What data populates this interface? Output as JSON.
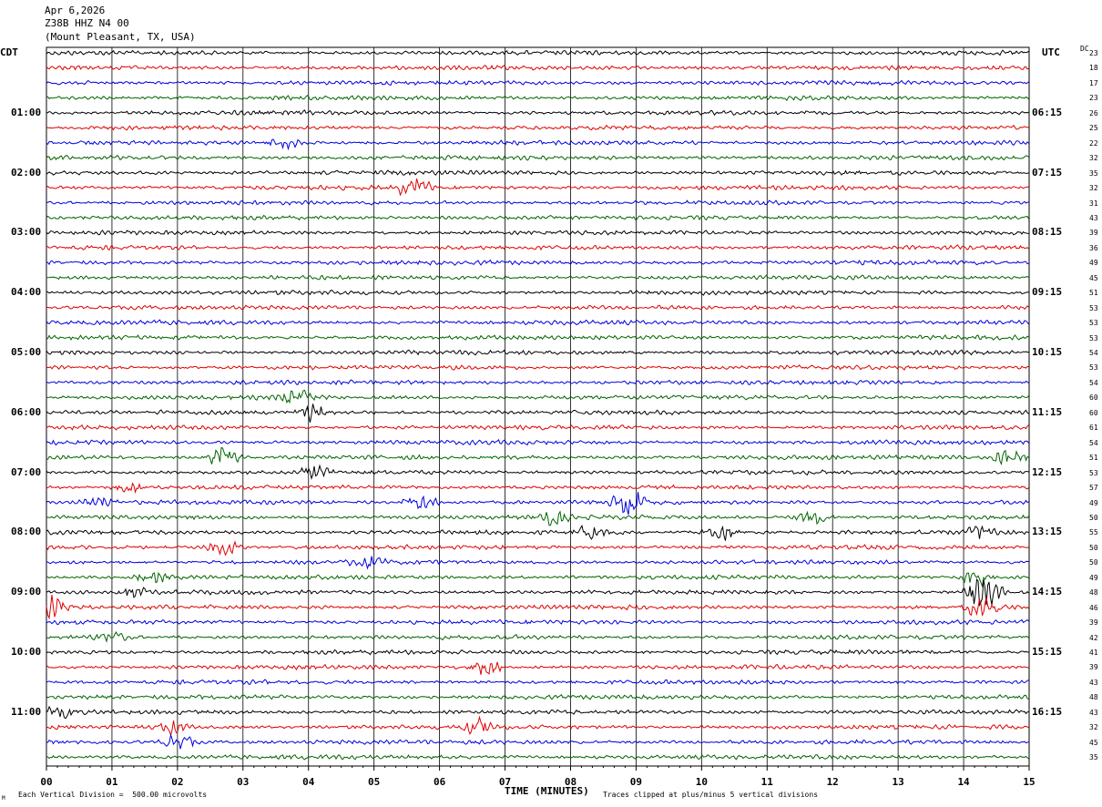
{
  "header": {
    "date": "Apr 6,2026",
    "station": "Z38B HHZ N4 00",
    "location": "(Mount Pleasant, TX, USA)"
  },
  "left_timezone": "CDT",
  "right_timezone": "UTC",
  "dc_label": "DC",
  "left_hour_labels": [
    "01:00",
    "02:00",
    "03:00",
    "04:00",
    "05:00",
    "06:00",
    "07:00",
    "08:00",
    "09:00",
    "10:00",
    "11:00"
  ],
  "right_hour_labels": [
    "06:15",
    "07:15",
    "08:15",
    "09:15",
    "10:15",
    "11:15",
    "12:15",
    "13:15",
    "14:15",
    "15:15",
    "16:15"
  ],
  "dc_values": [
    "23",
    "18",
    "17",
    "23",
    "26",
    "25",
    "22",
    "32",
    "35",
    "32",
    "31",
    "43",
    "39",
    "36",
    "49",
    "45",
    "51",
    "53",
    "53",
    "53",
    "54",
    "53",
    "54",
    "60",
    "60",
    "61",
    "54",
    "51",
    "53",
    "57",
    "49",
    "50",
    "55",
    "50",
    "50",
    "49",
    "48",
    "46",
    "39",
    "42",
    "41",
    "39",
    "43",
    "48",
    "43",
    "32",
    "45",
    "35"
  ],
  "x_ticks": [
    "00",
    "01",
    "02",
    "03",
    "04",
    "05",
    "06",
    "07",
    "08",
    "09",
    "10",
    "11",
    "12",
    "13",
    "14",
    "15"
  ],
  "x_axis_label": "TIME (MINUTES)",
  "footer": {
    "division_note": "Each Vertical Division =  500.00 microvolts",
    "clip_note": "Traces clipped at plus/minus 5 vertical divisions",
    "corner_mark": "M"
  },
  "trace_colors": [
    "#000000",
    "#e00000",
    "#0000e0",
    "#006400"
  ],
  "events": [
    {
      "row": 6,
      "minute": 3.6,
      "strength": 0.6
    },
    {
      "row": 9,
      "minute": 5.6,
      "strength": 1.0
    },
    {
      "row": 23,
      "minute": 3.8,
      "strength": 0.8
    },
    {
      "row": 24,
      "minute": 4.1,
      "strength": 0.9
    },
    {
      "row": 27,
      "minute": 2.7,
      "strength": 1.0
    },
    {
      "row": 27,
      "minute": 14.7,
      "strength": 0.9
    },
    {
      "row": 28,
      "minute": 4.1,
      "strength": 0.6
    },
    {
      "row": 29,
      "minute": 1.3,
      "strength": 0.5
    },
    {
      "row": 30,
      "minute": 0.8,
      "strength": 0.5
    },
    {
      "row": 30,
      "minute": 5.7,
      "strength": 0.8
    },
    {
      "row": 30,
      "minute": 8.9,
      "strength": 1.6
    },
    {
      "row": 31,
      "minute": 7.7,
      "strength": 0.7
    },
    {
      "row": 31,
      "minute": 11.7,
      "strength": 0.7
    },
    {
      "row": 32,
      "minute": 8.3,
      "strength": 0.5
    },
    {
      "row": 32,
      "minute": 10.3,
      "strength": 0.8
    },
    {
      "row": 32,
      "minute": 14.3,
      "strength": 0.7
    },
    {
      "row": 33,
      "minute": 2.7,
      "strength": 0.8
    },
    {
      "row": 34,
      "minute": 4.9,
      "strength": 0.6
    },
    {
      "row": 35,
      "minute": 1.6,
      "strength": 0.6
    },
    {
      "row": 35,
      "minute": 14.2,
      "strength": 0.8
    },
    {
      "row": 36,
      "minute": 14.3,
      "strength": 2.2
    },
    {
      "row": 36,
      "minute": 1.3,
      "strength": 0.5
    },
    {
      "row": 37,
      "minute": 0.1,
      "strength": 1.2
    },
    {
      "row": 37,
      "minute": 14.3,
      "strength": 1.2
    },
    {
      "row": 39,
      "minute": 1.0,
      "strength": 0.4
    },
    {
      "row": 41,
      "minute": 6.7,
      "strength": 0.8
    },
    {
      "row": 44,
      "minute": 0.2,
      "strength": 0.5
    },
    {
      "row": 45,
      "minute": 6.6,
      "strength": 0.8
    },
    {
      "row": 45,
      "minute": 1.9,
      "strength": 0.6
    },
    {
      "row": 46,
      "minute": 2.0,
      "strength": 0.8
    }
  ]
}
